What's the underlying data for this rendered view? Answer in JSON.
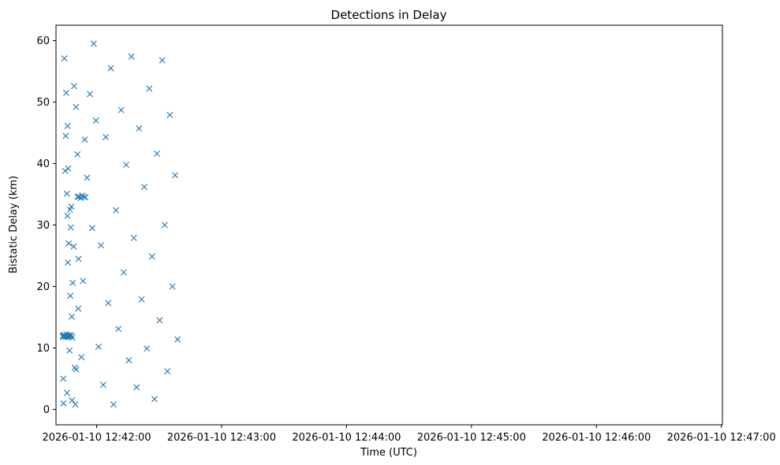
{
  "chart_data": {
    "type": "scatter",
    "title": "Detections in Delay",
    "xlabel": "Time (UTC)",
    "ylabel": "Bistatic Delay (km)",
    "marker": "x",
    "color": "#1f77b4",
    "grid": false,
    "x_ticks": [
      "2026-01-10 12:42:00",
      "2026-01-10 12:43:00",
      "2026-01-10 12:44:00",
      "2026-01-10 12:45:00",
      "2026-01-10 12:46:00",
      "2026-01-10 12:47:00"
    ],
    "x_tick_seconds": [
      0,
      60,
      120,
      180,
      240,
      300
    ],
    "y_ticks": [
      0,
      10,
      20,
      30,
      40,
      50,
      60
    ],
    "xlim_seconds": [
      -19.5,
      300.5
    ],
    "ylim": [
      -2.5,
      62.5
    ],
    "series": [
      {
        "seconds": [
          -16.1,
          -16.1,
          -15.7,
          -15.7,
          -15.3,
          -14.9,
          -14.5,
          -14.1,
          -13.7,
          -13.3,
          -12.9,
          -12.5,
          -12.1,
          -11.7,
          -14.8,
          -13.6,
          -12.2,
          -11.0,
          -15.5,
          -13.9,
          -12.8,
          -11.5,
          -16.0,
          -14.2,
          -13.0,
          -11.8,
          -15.1,
          -14.0,
          -13.4,
          -12.6,
          -14.6,
          -13.8,
          -11.9,
          -15.9,
          -14.3,
          -12.4,
          -10.5,
          -9.8,
          -9.1,
          -8.4,
          -7.6,
          -6.9,
          -6.1,
          -5.4,
          -10.8,
          -9.9,
          -9.2,
          -8.7,
          -10.2,
          -8.8,
          -7.3,
          -6.5,
          -5.7,
          -4.6,
          -3.2,
          -2.1,
          -1.4,
          -0.3,
          0.9,
          2.1,
          3.2,
          4.4,
          5.6,
          6.8,
          8.1,
          9.3,
          10.5,
          11.8,
          13.0,
          14.2,
          15.5,
          16.7,
          17.9,
          19.2,
          20.4,
          21.6,
          22.9,
          24.1,
          25.3,
          26.6,
          27.8,
          29.0,
          30.3,
          31.5,
          32.7,
          34.0,
          35.2,
          36.4,
          37.7,
          38.9
        ],
        "delays": [
          12.0,
          11.8,
          12.1,
          11.9,
          12.0,
          11.8,
          12.2,
          11.9,
          12.0,
          11.8,
          12.1,
          11.9,
          12.0,
          11.7,
          44.5,
          39.2,
          33.0,
          26.5,
          57.1,
          46.1,
          32.5,
          20.6,
          5.0,
          2.7,
          9.6,
          1.5,
          38.8,
          31.5,
          27.0,
          18.5,
          51.5,
          23.9,
          15.1,
          1.0,
          35.1,
          29.6,
          6.8,
          6.5,
          34.6,
          34.6,
          34.4,
          34.8,
          34.6,
          34.5,
          52.6,
          49.2,
          41.5,
          24.5,
          0.8,
          16.4,
          8.5,
          20.9,
          43.9,
          37.7,
          51.3,
          29.5,
          59.5,
          47.0,
          10.2,
          26.7,
          4.0,
          44.3,
          17.3,
          55.5,
          0.8,
          32.4,
          13.1,
          48.7,
          22.3,
          39.8,
          8.0,
          57.4,
          27.9,
          3.6,
          45.7,
          17.9,
          36.2,
          9.9,
          52.2,
          24.9,
          1.7,
          41.6,
          14.5,
          56.8,
          30.0,
          6.2,
          47.9,
          20.0,
          38.1,
          11.4
        ]
      }
    ]
  }
}
